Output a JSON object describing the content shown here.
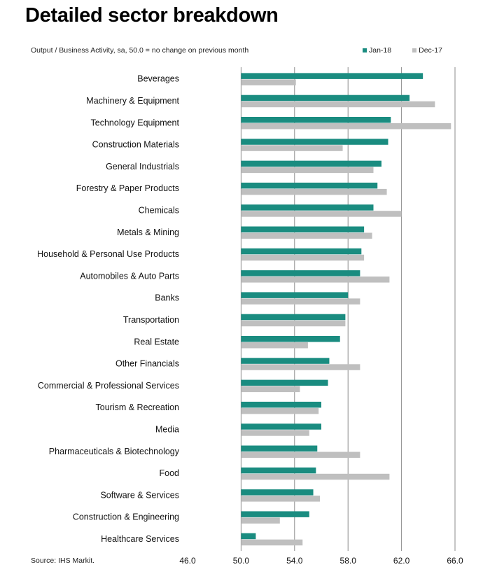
{
  "header": {
    "title": "Detailed sector breakdown",
    "subtitle": "Output / Business Activity, sa, 50.0 = no change on previous month"
  },
  "footer": {
    "source": "Source: IHS Markit."
  },
  "colors": {
    "jan": "#1a8c80",
    "dec": "#bfbfbf",
    "grid": "#8c8c8c"
  },
  "chart_data": {
    "type": "bar",
    "orientation": "horizontal",
    "title": "Detailed sector breakdown",
    "subtitle": "Output / Business Activity, sa, 50.0 = no change on previous month",
    "categories": [
      "Beverages",
      "Machinery & Equipment",
      "Technology Equipment",
      "Construction Materials",
      "General Industrials",
      "Forestry & Paper Products",
      "Chemicals",
      "Metals & Mining",
      "Household & Personal Use Products",
      "Automobiles & Auto Parts",
      "Banks",
      "Transportation",
      "Real Estate",
      "Other Financials",
      "Commercial & Professional Services",
      "Tourism & Recreation",
      "Media",
      "Pharmaceuticals & Biotechnology",
      "Food",
      "Software & Services",
      "Construction & Engineering",
      "Healthcare Services"
    ],
    "series": [
      {
        "name": "Jan-18",
        "color": "#1a8c80",
        "values": [
          63.6,
          62.6,
          61.2,
          61.0,
          60.5,
          60.2,
          59.9,
          59.2,
          59.0,
          58.9,
          58.0,
          57.8,
          57.4,
          56.6,
          56.5,
          56.0,
          56.0,
          55.7,
          55.6,
          55.4,
          55.1,
          51.1
        ]
      },
      {
        "name": "Dec-17",
        "color": "#bfbfbf",
        "values": [
          54.1,
          64.5,
          65.7,
          57.6,
          59.9,
          60.9,
          62.0,
          59.8,
          59.2,
          61.1,
          58.9,
          57.8,
          55.0,
          58.9,
          54.4,
          55.8,
          55.1,
          58.9,
          61.1,
          55.9,
          52.9,
          54.6
        ]
      }
    ],
    "xlim": [
      46.0,
      66.0
    ],
    "xticks": [
      "46.0",
      "50.0",
      "54.0",
      "58.0",
      "62.0",
      "66.0"
    ],
    "baseline": 50.0,
    "grid": true,
    "legend_position": "top-right"
  }
}
